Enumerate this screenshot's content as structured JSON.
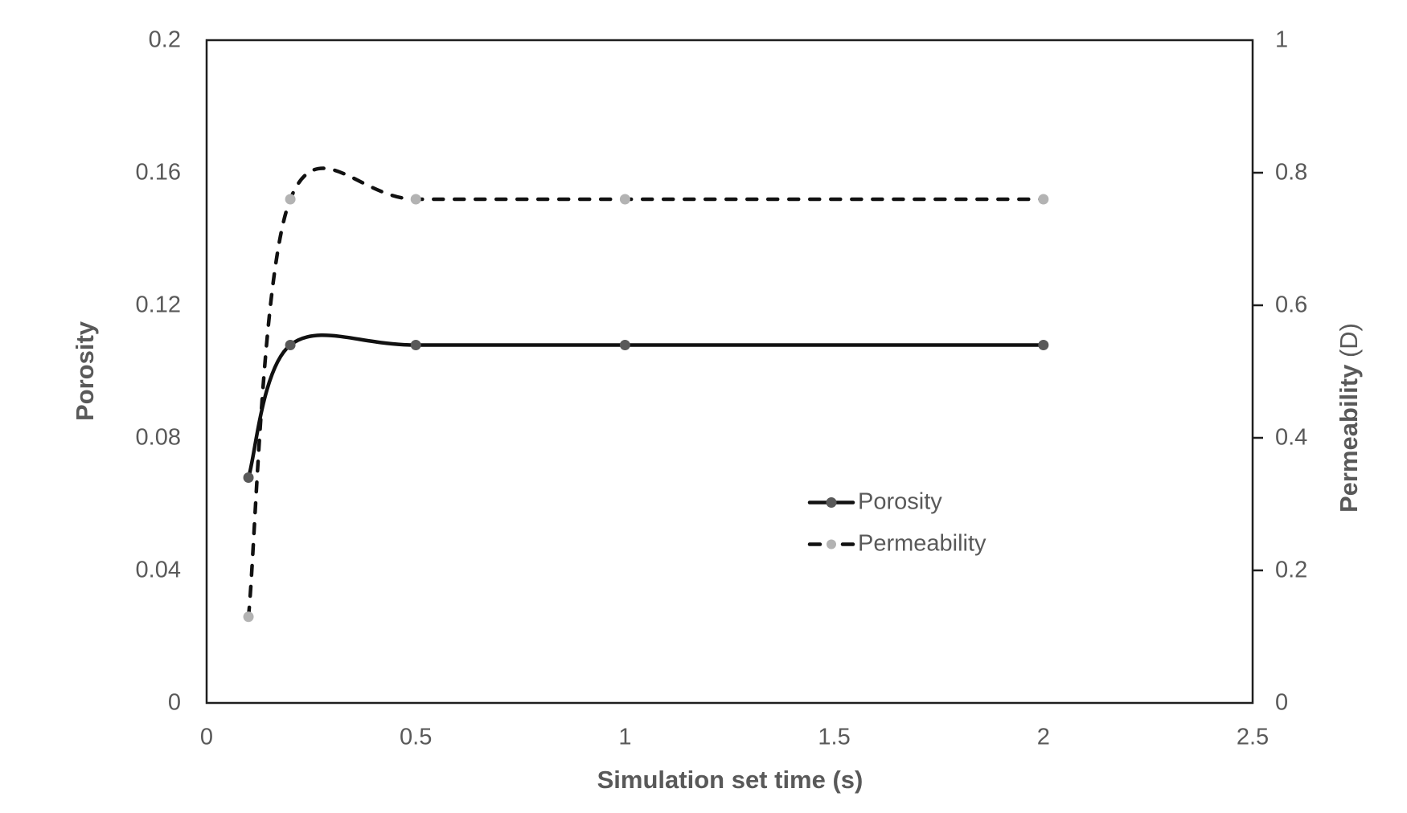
{
  "chart_data": {
    "type": "line",
    "title": "",
    "smoothed": true,
    "grid": false,
    "legend_position": "inside-right",
    "x": [
      0.1,
      0.2,
      0.5,
      1,
      2
    ],
    "series": [
      {
        "name": "Porosity",
        "axis": "left",
        "values": [
          0.068,
          0.108,
          0.108,
          0.108,
          0.108
        ],
        "line_style": "solid",
        "line_color": "#111111",
        "marker_color": "#595959"
      },
      {
        "name": "Permeability",
        "axis": "right",
        "values": [
          0.13,
          0.76,
          0.76,
          0.76,
          0.76
        ],
        "line_style": "dashed",
        "line_color": "#111111",
        "marker_color": "#b3b3b3"
      }
    ],
    "x_axis": {
      "title": "Simulation set time (s)",
      "min": 0,
      "max": 2.5,
      "ticks": [
        0,
        0.5,
        1,
        1.5,
        2,
        2.5
      ],
      "tick_labels": [
        "0",
        "0.5",
        "1",
        "1.5",
        "2",
        "2.5"
      ]
    },
    "y_axis_left": {
      "title": "Porosity",
      "min": 0,
      "max": 0.2,
      "ticks": [
        0,
        0.04,
        0.08,
        0.12,
        0.16,
        0.2
      ],
      "tick_labels": [
        "0",
        "0.04",
        "0.08",
        "0.12",
        "0.16",
        "0.2"
      ]
    },
    "y_axis_right": {
      "title_main": "Permeability",
      "title_unit": " (D)",
      "min": 0,
      "max": 1,
      "ticks": [
        0,
        0.2,
        0.4,
        0.6,
        0.8,
        1
      ],
      "tick_labels": [
        "0",
        "0.2",
        "0.4",
        "0.6",
        "0.8",
        "1"
      ]
    },
    "legend": [
      {
        "label": "Porosity"
      },
      {
        "label": "Permeability"
      }
    ]
  },
  "colors": {
    "text": "#595959",
    "axis_line": "#1f1f1f",
    "series_line": "#111111",
    "porosity_marker": "#595959",
    "permeability_marker": "#b3b3b3",
    "background": "#ffffff"
  }
}
